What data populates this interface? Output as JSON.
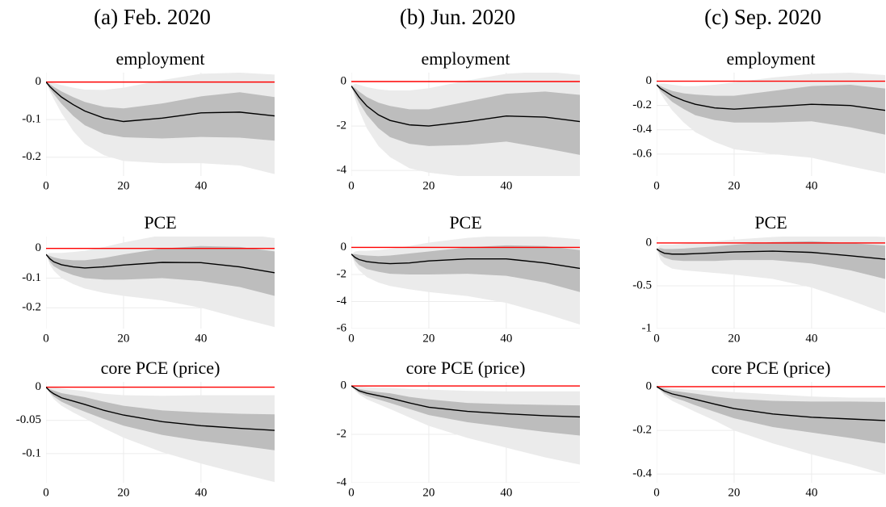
{
  "column_titles": [
    "(a) Feb. 2020",
    "(b) Jun. 2020",
    "(c) Sep. 2020"
  ],
  "chart_data": [
    {
      "type": "line",
      "title": "employment",
      "x": [
        0,
        1,
        2,
        4,
        7,
        10,
        15,
        20,
        30,
        40,
        50,
        59
      ],
      "xlim": [
        0,
        59
      ],
      "xticks": [
        0,
        20,
        40
      ],
      "ylim": [
        -0.25,
        0.025
      ],
      "yticks": [
        -0.2,
        -0.1,
        0
      ],
      "grid": true,
      "line": {
        "color": "#000000",
        "values": [
          0,
          -0.012,
          -0.022,
          -0.04,
          -0.06,
          -0.077,
          -0.096,
          -0.105,
          -0.096,
          -0.082,
          -0.08,
          -0.09
        ]
      },
      "bands": [
        {
          "color": "#ebebeb",
          "lower": [
            0,
            -0.025,
            -0.045,
            -0.083,
            -0.13,
            -0.165,
            -0.195,
            -0.21,
            -0.216,
            -0.216,
            -0.222,
            -0.245
          ],
          "upper": [
            0,
            0,
            -0.003,
            -0.008,
            -0.015,
            -0.02,
            -0.021,
            -0.015,
            0.005,
            0.022,
            0.025,
            0.02
          ]
        },
        {
          "color": "#bdbdbd",
          "lower": [
            0,
            -0.018,
            -0.032,
            -0.058,
            -0.09,
            -0.115,
            -0.138,
            -0.147,
            -0.15,
            -0.146,
            -0.148,
            -0.156
          ],
          "upper": [
            0,
            -0.006,
            -0.013,
            -0.025,
            -0.04,
            -0.053,
            -0.066,
            -0.07,
            -0.057,
            -0.038,
            -0.027,
            -0.04
          ]
        }
      ],
      "reference_line": {
        "value": 0,
        "color": "#ff0000"
      }
    },
    {
      "type": "line",
      "title": "employment",
      "x": [
        0,
        1,
        2,
        4,
        7,
        10,
        15,
        20,
        30,
        40,
        50,
        59
      ],
      "xlim": [
        0,
        59
      ],
      "xticks": [
        0,
        20,
        40
      ],
      "ylim": [
        -4.25,
        0.4
      ],
      "yticks": [
        -4,
        -2,
        0
      ],
      "grid": true,
      "line": {
        "color": "#000000",
        "values": [
          -0.2,
          -0.45,
          -0.7,
          -1.1,
          -1.5,
          -1.75,
          -1.95,
          -2.0,
          -1.8,
          -1.55,
          -1.6,
          -1.8
        ]
      },
      "bands": [
        {
          "color": "#ebebeb",
          "lower": [
            -0.2,
            -0.8,
            -1.3,
            -2.1,
            -2.9,
            -3.4,
            -3.9,
            -4.1,
            -4.3,
            -4.5,
            -5.0,
            -5.6
          ],
          "upper": [
            -0.2,
            -0.1,
            -0.15,
            -0.25,
            -0.35,
            -0.4,
            -0.4,
            -0.3,
            0.05,
            0.35,
            0.45,
            0.3
          ]
        },
        {
          "color": "#bdbdbd",
          "lower": [
            -0.2,
            -0.6,
            -0.95,
            -1.5,
            -2.1,
            -2.5,
            -2.8,
            -2.9,
            -2.85,
            -2.7,
            -3.0,
            -3.3
          ],
          "upper": [
            -0.2,
            -0.3,
            -0.45,
            -0.7,
            -0.95,
            -1.1,
            -1.25,
            -1.25,
            -0.9,
            -0.55,
            -0.45,
            -0.6
          ]
        }
      ],
      "reference_line": {
        "value": 0,
        "color": "#ff0000"
      }
    },
    {
      "type": "line",
      "title": "employment",
      "x": [
        0,
        1,
        2,
        4,
        7,
        10,
        15,
        20,
        30,
        40,
        50,
        59
      ],
      "xlim": [
        0,
        59
      ],
      "xticks": [
        0,
        20,
        40
      ],
      "ylim": [
        -0.78,
        0.07
      ],
      "yticks": [
        -0.6,
        -0.4,
        -0.2,
        0
      ],
      "grid": true,
      "line": {
        "color": "#000000",
        "values": [
          -0.03,
          -0.06,
          -0.08,
          -0.12,
          -0.16,
          -0.19,
          -0.22,
          -0.23,
          -0.21,
          -0.19,
          -0.2,
          -0.24
        ]
      },
      "bands": [
        {
          "color": "#ebebeb",
          "lower": [
            -0.03,
            -0.1,
            -0.15,
            -0.24,
            -0.34,
            -0.42,
            -0.5,
            -0.56,
            -0.6,
            -0.63,
            -0.7,
            -0.76
          ],
          "upper": [
            -0.03,
            -0.02,
            -0.02,
            -0.03,
            -0.04,
            -0.04,
            -0.03,
            -0.01,
            0.03,
            0.06,
            0.07,
            0.05
          ]
        },
        {
          "color": "#bdbdbd",
          "lower": [
            -0.03,
            -0.08,
            -0.11,
            -0.17,
            -0.23,
            -0.28,
            -0.32,
            -0.34,
            -0.34,
            -0.33,
            -0.38,
            -0.44
          ],
          "upper": [
            -0.03,
            -0.04,
            -0.055,
            -0.08,
            -0.1,
            -0.11,
            -0.12,
            -0.12,
            -0.08,
            -0.04,
            -0.03,
            -0.06
          ]
        }
      ],
      "reference_line": {
        "value": 0,
        "color": "#ff0000"
      }
    },
    {
      "type": "line",
      "title": "PCE",
      "x": [
        0,
        1,
        2,
        4,
        7,
        10,
        15,
        20,
        30,
        40,
        50,
        59
      ],
      "xlim": [
        0,
        59
      ],
      "xticks": [
        0,
        20,
        40
      ],
      "ylim": [
        -0.27,
        0.04
      ],
      "yticks": [
        -0.2,
        -0.1,
        0
      ],
      "grid": true,
      "line": {
        "color": "#000000",
        "values": [
          -0.02,
          -0.035,
          -0.045,
          -0.055,
          -0.062,
          -0.066,
          -0.062,
          -0.056,
          -0.047,
          -0.048,
          -0.062,
          -0.082
        ]
      },
      "bands": [
        {
          "color": "#ebebeb",
          "lower": [
            -0.02,
            -0.055,
            -0.075,
            -0.1,
            -0.12,
            -0.135,
            -0.15,
            -0.16,
            -0.175,
            -0.2,
            -0.235,
            -0.265
          ],
          "upper": [
            -0.02,
            -0.015,
            -0.015,
            -0.015,
            -0.012,
            -0.008,
            0.005,
            0.02,
            0.045,
            0.055,
            0.05,
            0.035
          ]
        },
        {
          "color": "#bdbdbd",
          "lower": [
            -0.02,
            -0.045,
            -0.06,
            -0.075,
            -0.09,
            -0.1,
            -0.105,
            -0.105,
            -0.1,
            -0.11,
            -0.13,
            -0.16
          ],
          "upper": [
            -0.02,
            -0.025,
            -0.03,
            -0.036,
            -0.04,
            -0.04,
            -0.032,
            -0.02,
            0,
            0.008,
            0.005,
            -0.01
          ]
        }
      ],
      "reference_line": {
        "value": 0,
        "color": "#ff0000"
      }
    },
    {
      "type": "line",
      "title": "PCE",
      "x": [
        0,
        1,
        2,
        4,
        7,
        10,
        15,
        20,
        30,
        40,
        50,
        59
      ],
      "xlim": [
        0,
        59
      ],
      "xticks": [
        0,
        20,
        40
      ],
      "ylim": [
        -6,
        0.8
      ],
      "yticks": [
        -6,
        -4,
        -2,
        0
      ],
      "grid": true,
      "line": {
        "color": "#000000",
        "values": [
          -0.5,
          -0.75,
          -0.9,
          -1.05,
          -1.15,
          -1.2,
          -1.15,
          -1.0,
          -0.85,
          -0.85,
          -1.15,
          -1.55
        ]
      },
      "bands": [
        {
          "color": "#ebebeb",
          "lower": [
            -0.5,
            -1.3,
            -1.7,
            -2.2,
            -2.6,
            -2.85,
            -3.1,
            -3.3,
            -3.6,
            -4.1,
            -4.9,
            -5.7
          ],
          "upper": [
            -0.5,
            -0.3,
            -0.25,
            -0.25,
            -0.2,
            -0.1,
            0.1,
            0.35,
            0.7,
            0.9,
            0.8,
            0.6
          ]
        },
        {
          "color": "#bdbdbd",
          "lower": [
            -0.5,
            -1.0,
            -1.3,
            -1.6,
            -1.8,
            -1.95,
            -2.0,
            -2.0,
            -1.95,
            -2.1,
            -2.6,
            -3.3
          ],
          "upper": [
            -0.5,
            -0.5,
            -0.55,
            -0.6,
            -0.65,
            -0.6,
            -0.45,
            -0.3,
            0,
            0.15,
            0.1,
            -0.2
          ]
        }
      ],
      "reference_line": {
        "value": 0,
        "color": "#ff0000"
      }
    },
    {
      "type": "line",
      "title": "PCE",
      "x": [
        0,
        1,
        2,
        4,
        7,
        10,
        15,
        20,
        30,
        40,
        50,
        59
      ],
      "xlim": [
        0,
        59
      ],
      "xticks": [
        0,
        20,
        40
      ],
      "ylim": [
        -1,
        0.075
      ],
      "yticks": [
        -1,
        -0.5,
        0
      ],
      "grid": true,
      "line": {
        "color": "#000000",
        "values": [
          -0.07,
          -0.1,
          -0.12,
          -0.13,
          -0.13,
          -0.125,
          -0.115,
          -0.105,
          -0.095,
          -0.11,
          -0.15,
          -0.19
        ]
      },
      "bands": [
        {
          "color": "#ebebeb",
          "lower": [
            -0.07,
            -0.2,
            -0.25,
            -0.3,
            -0.32,
            -0.33,
            -0.35,
            -0.37,
            -0.42,
            -0.52,
            -0.67,
            -0.82
          ],
          "upper": [
            -0.07,
            -0.02,
            -0.02,
            -0.02,
            -0.01,
            0,
            0.02,
            0.04,
            0.07,
            0.09,
            0.09,
            0.07
          ]
        },
        {
          "color": "#bdbdbd",
          "lower": [
            -0.07,
            -0.14,
            -0.17,
            -0.2,
            -0.21,
            -0.21,
            -0.21,
            -0.2,
            -0.2,
            -0.24,
            -0.32,
            -0.42
          ],
          "upper": [
            -0.07,
            -0.06,
            -0.07,
            -0.07,
            -0.065,
            -0.055,
            -0.04,
            -0.02,
            0.01,
            0.02,
            0,
            -0.03
          ]
        }
      ],
      "reference_line": {
        "value": 0,
        "color": "#ff0000"
      }
    },
    {
      "type": "line",
      "title": "core PCE (price)",
      "x": [
        0,
        1,
        2,
        4,
        7,
        10,
        15,
        20,
        30,
        40,
        50,
        59
      ],
      "xlim": [
        0,
        59
      ],
      "xticks": [
        0,
        20,
        40
      ],
      "ylim": [
        -0.144,
        0.008
      ],
      "yticks": [
        -0.1,
        -0.05,
        0
      ],
      "grid": true,
      "line": {
        "color": "#000000",
        "values": [
          0,
          -0.006,
          -0.01,
          -0.016,
          -0.021,
          -0.026,
          -0.035,
          -0.042,
          -0.052,
          -0.058,
          -0.062,
          -0.065
        ]
      },
      "bands": [
        {
          "color": "#ebebeb",
          "lower": [
            0,
            -0.01,
            -0.018,
            -0.028,
            -0.038,
            -0.047,
            -0.062,
            -0.076,
            -0.098,
            -0.115,
            -0.13,
            -0.143
          ],
          "upper": [
            0,
            0,
            0,
            -0.002,
            -0.004,
            -0.006,
            -0.01,
            -0.012,
            -0.013,
            -0.012,
            -0.012,
            -0.012
          ]
        },
        {
          "color": "#bdbdbd",
          "lower": [
            0,
            -0.008,
            -0.014,
            -0.022,
            -0.03,
            -0.037,
            -0.048,
            -0.058,
            -0.072,
            -0.081,
            -0.088,
            -0.095
          ],
          "upper": [
            0,
            -0.003,
            -0.005,
            -0.009,
            -0.012,
            -0.015,
            -0.022,
            -0.028,
            -0.035,
            -0.038,
            -0.04,
            -0.041
          ]
        }
      ],
      "reference_line": {
        "value": 0,
        "color": "#ff0000"
      }
    },
    {
      "type": "line",
      "title": "core PCE (price)",
      "x": [
        0,
        1,
        2,
        4,
        7,
        10,
        15,
        20,
        30,
        40,
        50,
        59
      ],
      "xlim": [
        0,
        59
      ],
      "xticks": [
        0,
        20,
        40
      ],
      "ylim": [
        -4,
        0.17
      ],
      "yticks": [
        -4,
        -2,
        0
      ],
      "grid": true,
      "line": {
        "color": "#000000",
        "values": [
          0,
          -0.1,
          -0.2,
          -0.3,
          -0.4,
          -0.5,
          -0.7,
          -0.88,
          -1.05,
          -1.15,
          -1.23,
          -1.28
        ]
      },
      "bands": [
        {
          "color": "#ebebeb",
          "lower": [
            0,
            -0.2,
            -0.35,
            -0.55,
            -0.75,
            -0.95,
            -1.3,
            -1.65,
            -2.15,
            -2.55,
            -2.95,
            -3.25
          ],
          "upper": [
            0,
            0,
            -0.02,
            -0.05,
            -0.07,
            -0.08,
            -0.12,
            -0.15,
            -0.2,
            -0.22,
            -0.22,
            -0.22
          ]
        },
        {
          "color": "#bdbdbd",
          "lower": [
            0,
            -0.15,
            -0.28,
            -0.42,
            -0.56,
            -0.7,
            -0.95,
            -1.2,
            -1.5,
            -1.7,
            -1.9,
            -2.05
          ],
          "upper": [
            0,
            -0.06,
            -0.12,
            -0.18,
            -0.25,
            -0.3,
            -0.45,
            -0.55,
            -0.7,
            -0.75,
            -0.78,
            -0.8
          ]
        }
      ],
      "reference_line": {
        "value": 0,
        "color": "#ff0000"
      }
    },
    {
      "type": "line",
      "title": "core PCE (price)",
      "x": [
        0,
        1,
        2,
        4,
        7,
        10,
        15,
        20,
        30,
        40,
        50,
        59
      ],
      "xlim": [
        0,
        59
      ],
      "xticks": [
        0,
        20,
        40
      ],
      "ylim": [
        -0.44,
        0.022
      ],
      "yticks": [
        -0.4,
        -0.2,
        0
      ],
      "grid": true,
      "line": {
        "color": "#000000",
        "values": [
          0,
          -0.01,
          -0.02,
          -0.033,
          -0.045,
          -0.058,
          -0.08,
          -0.1,
          -0.125,
          -0.14,
          -0.148,
          -0.155
        ]
      },
      "bands": [
        {
          "color": "#ebebeb",
          "lower": [
            0,
            -0.02,
            -0.04,
            -0.065,
            -0.09,
            -0.115,
            -0.155,
            -0.2,
            -0.26,
            -0.31,
            -0.355,
            -0.4
          ],
          "upper": [
            0,
            0,
            -0.003,
            -0.008,
            -0.012,
            -0.015,
            -0.02,
            -0.025,
            -0.035,
            -0.045,
            -0.05,
            -0.05
          ]
        },
        {
          "color": "#bdbdbd",
          "lower": [
            0,
            -0.015,
            -0.03,
            -0.048,
            -0.065,
            -0.085,
            -0.115,
            -0.145,
            -0.185,
            -0.21,
            -0.235,
            -0.26
          ],
          "upper": [
            0,
            -0.005,
            -0.01,
            -0.018,
            -0.025,
            -0.032,
            -0.045,
            -0.055,
            -0.065,
            -0.068,
            -0.068,
            -0.07
          ]
        }
      ],
      "reference_line": {
        "value": 0,
        "color": "#ff0000"
      }
    }
  ]
}
